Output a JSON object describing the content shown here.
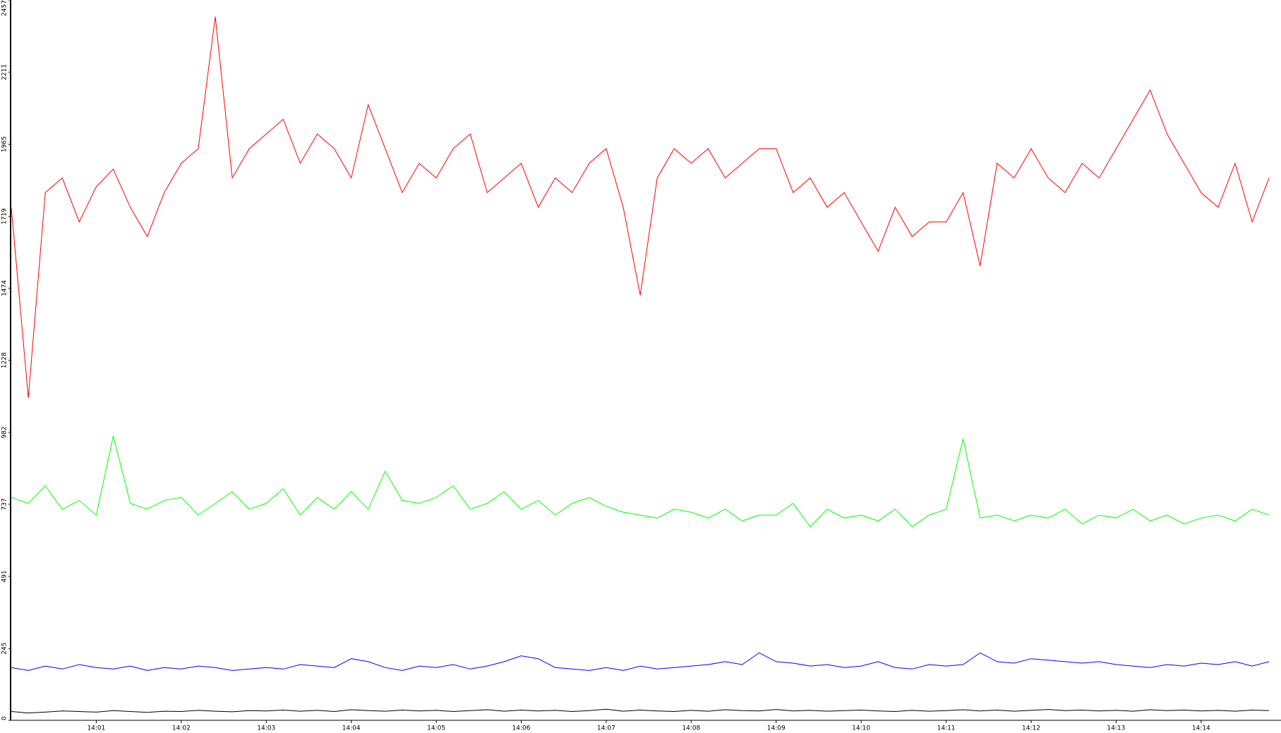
{
  "chart_data": {
    "type": "line",
    "x": [
      0,
      0.2,
      0.4,
      0.6,
      0.8,
      1,
      1.2,
      1.4,
      1.6,
      1.8,
      2,
      2.2,
      2.4,
      2.6,
      2.8,
      3,
      3.2,
      3.4,
      3.6,
      3.8,
      4,
      4.2,
      4.4,
      4.6,
      4.8,
      5,
      5.2,
      5.4,
      5.6,
      5.8,
      6,
      6.2,
      6.4,
      6.6,
      6.8,
      7,
      7.2,
      7.4,
      7.6,
      7.8,
      8,
      8.2,
      8.4,
      8.6,
      8.8,
      9,
      9.2,
      9.4,
      9.6,
      9.8,
      10,
      10.2,
      10.4,
      10.6,
      10.8,
      11,
      11.2,
      11.4,
      11.6,
      11.8,
      12,
      12.2,
      12.4,
      12.6,
      12.8,
      13,
      13.2,
      13.4,
      13.6,
      13.8,
      14,
      14.2,
      14.4,
      14.6,
      14.8
    ],
    "xlim": [
      0,
      14.94
    ],
    "xticks": [
      {
        "value": 1,
        "label": "14:01"
      },
      {
        "value": 2,
        "label": "14:02"
      },
      {
        "value": 3,
        "label": "14:03"
      },
      {
        "value": 4,
        "label": "14:04"
      },
      {
        "value": 5,
        "label": "14:05"
      },
      {
        "value": 6,
        "label": "14:06"
      },
      {
        "value": 7,
        "label": "14:07"
      },
      {
        "value": 8,
        "label": "14:08"
      },
      {
        "value": 9,
        "label": "14:09"
      },
      {
        "value": 10,
        "label": "14:10"
      },
      {
        "value": 11,
        "label": "14:11"
      },
      {
        "value": 12,
        "label": "14:12"
      },
      {
        "value": 13,
        "label": "14:13"
      },
      {
        "value": 14,
        "label": "14:14"
      }
    ],
    "ylim": [
      0,
      2457
    ],
    "yticks": [
      0,
      245,
      491,
      737,
      982,
      1228,
      1474,
      1719,
      1965,
      2211,
      2457
    ],
    "series": [
      {
        "color": "#ff0000",
        "values": [
          1750,
          1100,
          1800,
          1850,
          1700,
          1820,
          1880,
          1750,
          1650,
          1800,
          1900,
          1950,
          2400,
          1850,
          1950,
          2000,
          2050,
          1900,
          2000,
          1950,
          1850,
          2100,
          1950,
          1800,
          1900,
          1850,
          1950,
          2000,
          1800,
          1850,
          1900,
          1750,
          1850,
          1800,
          1900,
          1950,
          1750,
          1450,
          1850,
          1950,
          1900,
          1950,
          1850,
          1900,
          1950,
          1950,
          1800,
          1850,
          1750,
          1800,
          1700,
          1600,
          1750,
          1650,
          1700,
          1700,
          1800,
          1550,
          1900,
          1850,
          1950,
          1850,
          1800,
          1900,
          1850,
          1950,
          2050,
          2150,
          2000,
          1900,
          1800,
          1750,
          1900,
          1700,
          1850
        ]
      },
      {
        "color": "#00ff00",
        "values": [
          760,
          740,
          800,
          720,
          750,
          700,
          970,
          740,
          720,
          750,
          760,
          700,
          740,
          780,
          720,
          740,
          790,
          700,
          760,
          720,
          780,
          720,
          850,
          750,
          740,
          760,
          800,
          720,
          740,
          780,
          720,
          750,
          700,
          740,
          760,
          730,
          710,
          700,
          690,
          720,
          710,
          690,
          720,
          680,
          700,
          700,
          740,
          660,
          720,
          690,
          700,
          680,
          720,
          660,
          700,
          720,
          960,
          690,
          700,
          680,
          700,
          690,
          720,
          670,
          700,
          690,
          720,
          680,
          700,
          670,
          690,
          700,
          680,
          720,
          700
        ]
      },
      {
        "color": "#0000ff",
        "values": [
          180,
          170,
          185,
          175,
          190,
          180,
          175,
          185,
          170,
          180,
          175,
          185,
          180,
          170,
          175,
          180,
          175,
          190,
          185,
          180,
          210,
          200,
          180,
          170,
          185,
          180,
          190,
          175,
          185,
          200,
          220,
          210,
          180,
          175,
          170,
          180,
          170,
          185,
          175,
          180,
          185,
          190,
          200,
          190,
          230,
          200,
          195,
          185,
          190,
          180,
          185,
          200,
          180,
          175,
          190,
          185,
          190,
          230,
          200,
          195,
          210,
          205,
          200,
          195,
          200,
          190,
          185,
          180,
          190,
          185,
          195,
          190,
          200,
          185,
          200
        ]
      },
      {
        "color": "#000000",
        "values": [
          30,
          25,
          28,
          32,
          30,
          28,
          33,
          30,
          27,
          31,
          30,
          34,
          31,
          29,
          33,
          32,
          35,
          31,
          34,
          30,
          36,
          33,
          31,
          35,
          32,
          34,
          30,
          33,
          36,
          31,
          35,
          32,
          34,
          30,
          33,
          38,
          31,
          35,
          32,
          30,
          34,
          31,
          36,
          33,
          32,
          37,
          32,
          34,
          31,
          33,
          35,
          32,
          30,
          34,
          31,
          33,
          36,
          32,
          35,
          31,
          34,
          37,
          33,
          35,
          32,
          34,
          31,
          36,
          33,
          35,
          32,
          34,
          31,
          35,
          33
        ]
      }
    ],
    "grid": false
  }
}
